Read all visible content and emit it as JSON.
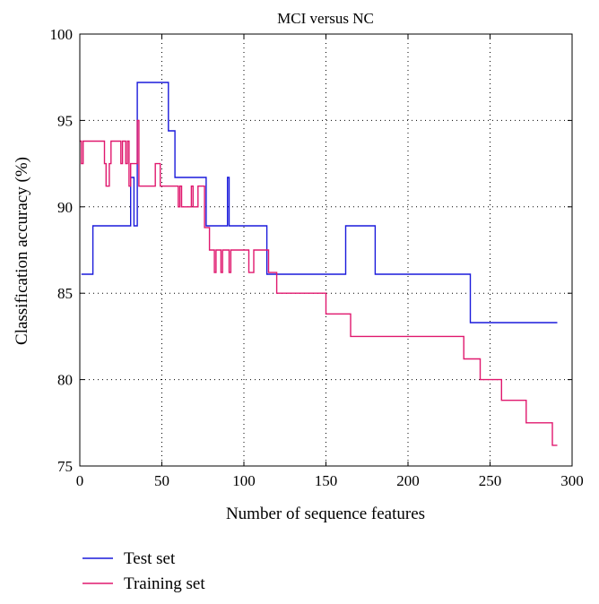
{
  "chart_data": {
    "type": "line",
    "title": "MCI versus NC",
    "xlabel": "Number of sequence features",
    "ylabel": "Classification accuracy (%)",
    "xlim": [
      0,
      300
    ],
    "ylim": [
      75,
      100
    ],
    "xticks": [
      0,
      50,
      100,
      150,
      200,
      250,
      300
    ],
    "yticks": [
      75,
      80,
      85,
      90,
      95,
      100
    ],
    "grid": true,
    "legend_position": "bottom-left",
    "series": [
      {
        "name": "Test set",
        "color": "#1a1adb",
        "step": true,
        "points": [
          [
            1,
            86.1
          ],
          [
            8,
            88.9
          ],
          [
            31,
            91.7
          ],
          [
            33,
            88.9
          ],
          [
            35,
            97.2
          ],
          [
            54,
            94.4
          ],
          [
            58,
            91.7
          ],
          [
            77,
            88.9
          ],
          [
            90,
            91.7
          ],
          [
            91,
            88.9
          ],
          [
            114,
            86.1
          ],
          [
            162,
            88.9
          ],
          [
            180,
            86.1
          ],
          [
            238,
            83.3
          ],
          [
            291,
            83.3
          ]
        ]
      },
      {
        "name": "Training set",
        "color": "#e0186e",
        "step": true,
        "points": [
          [
            0,
            93.8
          ],
          [
            1,
            92.5
          ],
          [
            2,
            93.8
          ],
          [
            15,
            92.5
          ],
          [
            16,
            91.2
          ],
          [
            18,
            92.5
          ],
          [
            19,
            93.8
          ],
          [
            25,
            92.5
          ],
          [
            26,
            93.8
          ],
          [
            28,
            92.5
          ],
          [
            29,
            93.8
          ],
          [
            30,
            91.2
          ],
          [
            31,
            92.5
          ],
          [
            35,
            95.0
          ],
          [
            36,
            91.2
          ],
          [
            46,
            92.5
          ],
          [
            49,
            91.2
          ],
          [
            60,
            90.0
          ],
          [
            61,
            91.2
          ],
          [
            62,
            90.0
          ],
          [
            68,
            91.2
          ],
          [
            69,
            90.0
          ],
          [
            72,
            91.2
          ],
          [
            76,
            88.8
          ],
          [
            79,
            87.5
          ],
          [
            82,
            86.2
          ],
          [
            83,
            87.5
          ],
          [
            86,
            86.2
          ],
          [
            87,
            87.5
          ],
          [
            91,
            86.2
          ],
          [
            92,
            87.5
          ],
          [
            103,
            86.2
          ],
          [
            106,
            87.5
          ],
          [
            115,
            86.2
          ],
          [
            120,
            85.0
          ],
          [
            150,
            83.8
          ],
          [
            165,
            82.5
          ],
          [
            234,
            81.2
          ],
          [
            244,
            80.0
          ],
          [
            257,
            78.8
          ],
          [
            272,
            77.5
          ],
          [
            288,
            76.2
          ],
          [
            291,
            76.2
          ]
        ]
      }
    ]
  }
}
